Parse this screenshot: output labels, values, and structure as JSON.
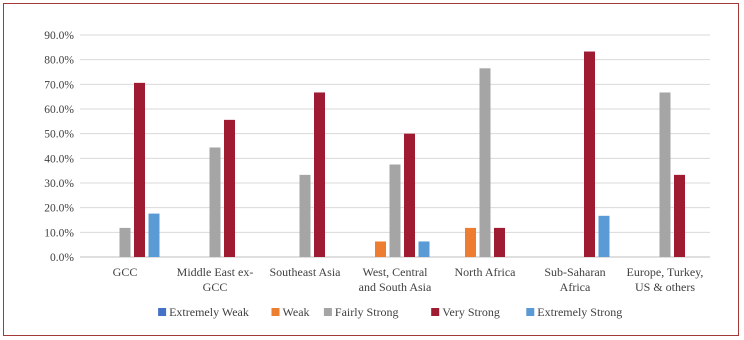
{
  "chart_data": {
    "type": "bar",
    "title": "",
    "xlabel": "",
    "ylabel": "",
    "ylim": [
      0,
      90
    ],
    "y_ticks": [
      "0.0%",
      "10.0%",
      "20.0%",
      "30.0%",
      "40.0%",
      "50.0%",
      "60.0%",
      "70.0%",
      "80.0%",
      "90.0%"
    ],
    "grid": true,
    "legend_position": "bottom",
    "categories": [
      [
        "GCC"
      ],
      [
        "Middle East ex-",
        "GCC"
      ],
      [
        "Southeast Asia"
      ],
      [
        "West, Central",
        "and South Asia"
      ],
      [
        "North Africa"
      ],
      [
        "Sub-Saharan",
        "Africa"
      ],
      [
        "Europe, Turkey,",
        "US & others"
      ]
    ],
    "series": [
      {
        "name": "Extremely Weak",
        "color": "#4472c4",
        "values": [
          0,
          0,
          0,
          0,
          0,
          0,
          0
        ]
      },
      {
        "name": "Weak",
        "color": "#ed7d31",
        "values": [
          0,
          0,
          0,
          6.3,
          11.8,
          0,
          0
        ]
      },
      {
        "name": "Fairly Strong",
        "color": "#a5a5a5",
        "values": [
          11.8,
          44.4,
          33.3,
          37.5,
          76.5,
          0,
          66.7
        ]
      },
      {
        "name": "Very Strong",
        "color": "#9e1b32",
        "values": [
          70.6,
          55.6,
          66.7,
          50.0,
          11.8,
          83.3,
          33.3
        ]
      },
      {
        "name": "Extremely Strong",
        "color": "#5b9bd5",
        "values": [
          17.6,
          0,
          0,
          6.3,
          0,
          16.7,
          0
        ]
      }
    ]
  }
}
